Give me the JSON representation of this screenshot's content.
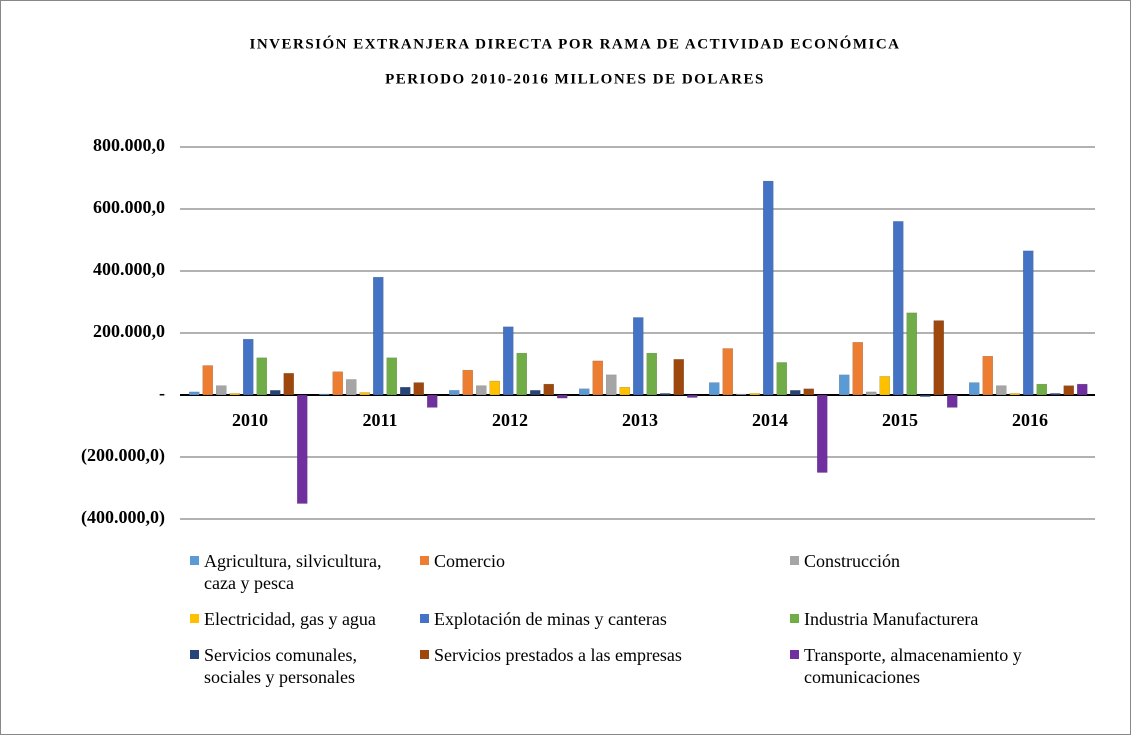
{
  "chart_data": {
    "type": "bar",
    "title": "INVERSIÓN EXTRANJERA DIRECTA POR RAMA DE ACTIVIDAD ECONÓMICA",
    "subtitle": "PERIODO 2010-2016 MILLONES DE DOLARES",
    "categories": [
      "2010",
      "2011",
      "2012",
      "2013",
      "2014",
      "2015",
      "2016"
    ],
    "series": [
      {
        "name": "Agricultura, silvicultura, caza y pesca",
        "color": "#5b9bd5",
        "values": [
          10000,
          3000,
          15000,
          20000,
          40000,
          65000,
          40000
        ]
      },
      {
        "name": "Comercio",
        "color": "#ed7d31",
        "values": [
          95000,
          75000,
          80000,
          110000,
          150000,
          170000,
          125000
        ]
      },
      {
        "name": "Construcción",
        "color": "#a5a5a5",
        "values": [
          30000,
          50000,
          30000,
          65000,
          3000,
          10000,
          30000
        ]
      },
      {
        "name": "Electricidad, gas y agua",
        "color": "#ffc000",
        "values": [
          5000,
          8000,
          45000,
          25000,
          5000,
          60000,
          5000
        ]
      },
      {
        "name": "Explotación de minas y canteras",
        "color": "#4472c4",
        "values": [
          180000,
          380000,
          220000,
          250000,
          690000,
          560000,
          465000
        ]
      },
      {
        "name": "Industria Manufacturera",
        "color": "#70ad47",
        "values": [
          120000,
          120000,
          135000,
          135000,
          105000,
          265000,
          35000
        ]
      },
      {
        "name": "Servicios comunales, sociales y personales",
        "color": "#264478",
        "values": [
          15000,
          25000,
          15000,
          5000,
          15000,
          -5000,
          5000
        ]
      },
      {
        "name": "Servicios prestados a las empresas",
        "color": "#9e480e",
        "values": [
          70000,
          40000,
          35000,
          115000,
          20000,
          240000,
          30000
        ]
      },
      {
        "name": "Transporte, almacenamiento y comunicaciones",
        "color": "#7030a0",
        "values": [
          -350000,
          -40000,
          -10000,
          -8000,
          -250000,
          -40000,
          35000
        ]
      }
    ],
    "ylim": [
      -400000,
      800000
    ],
    "yticks": [
      {
        "value": -400000,
        "label": "(400.000,0)"
      },
      {
        "value": -200000,
        "label": "(200.000,0)"
      },
      {
        "value": 0,
        "label": "-"
      },
      {
        "value": 200000,
        "label": "200.000,0"
      },
      {
        "value": 400000,
        "label": "400.000,0"
      },
      {
        "value": 600000,
        "label": "600.000,0"
      },
      {
        "value": 800000,
        "label": "800.000,0"
      }
    ],
    "grid": true
  }
}
